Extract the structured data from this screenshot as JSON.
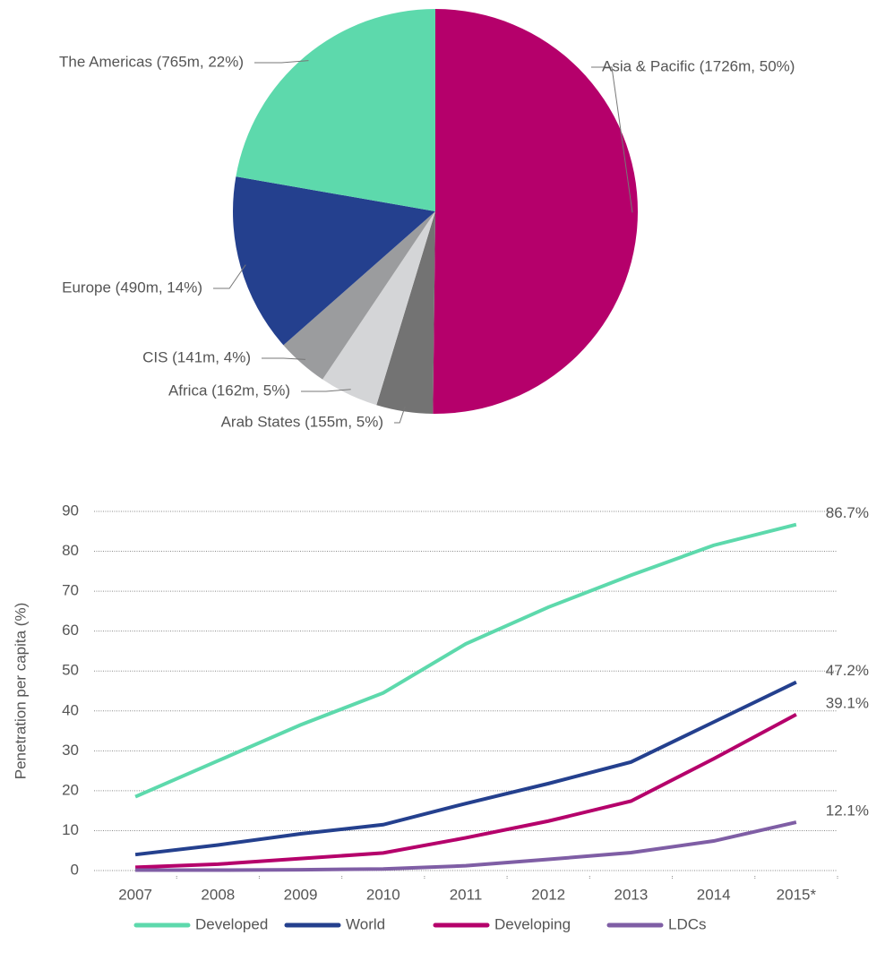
{
  "chart_data": [
    {
      "type": "pie",
      "categories": [
        "Asia & Pacific (1726m, 50%)",
        "Arab States (155m, 5%)",
        "Africa (162m, 5%)",
        "CIS (141m, 4%)",
        "Europe (490m, 14%)",
        "The Americas (765m, 22%)"
      ],
      "values": [
        1726,
        155,
        162,
        141,
        490,
        765
      ],
      "colors": [
        "#b5006b",
        "#737373",
        "#d4d5d7",
        "#9b9c9e",
        "#24408e",
        "#5dd9ac"
      ]
    },
    {
      "type": "line",
      "ylabel": "Penetration per capita (%)",
      "categories": [
        "2007",
        "2008",
        "2009",
        "2010",
        "2011",
        "2012",
        "2013",
        "2014",
        "2015*"
      ],
      "ylim": [
        0,
        90
      ],
      "yticks": [
        0,
        10,
        20,
        30,
        40,
        50,
        60,
        70,
        80,
        90
      ],
      "grid": true,
      "legend": "bottom",
      "series": [
        {
          "name": "Developed",
          "color": "#5dd9ac",
          "values": [
            18.5,
            27.5,
            36.5,
            44.5,
            56.8,
            66,
            74,
            81.5,
            86.7
          ],
          "value_labels": [
            null,
            null,
            null,
            null,
            null,
            null,
            null,
            null,
            "86.7%"
          ]
        },
        {
          "name": "World",
          "color": "#24408e",
          "values": [
            4,
            6.4,
            9.2,
            11.5,
            16.8,
            21.8,
            27.2,
            37.2,
            47.2
          ],
          "value_labels": [
            null,
            null,
            null,
            null,
            null,
            null,
            null,
            null,
            "47.2%"
          ]
        },
        {
          "name": "Developing",
          "color": "#b5006b",
          "values": [
            0.8,
            1.6,
            3,
            4.4,
            8.2,
            12.4,
            17.4,
            28,
            39.1
          ],
          "value_labels": [
            null,
            null,
            null,
            null,
            null,
            null,
            null,
            null,
            "39.1%"
          ]
        },
        {
          "name": "LDCs",
          "color": "#7f5ea5",
          "values": [
            0.1,
            0.1,
            0.2,
            0.4,
            1.2,
            2.8,
            4.5,
            7.4,
            12.1
          ],
          "value_labels": [
            null,
            null,
            null,
            null,
            null,
            null,
            null,
            null,
            "12.1%"
          ]
        }
      ]
    }
  ]
}
